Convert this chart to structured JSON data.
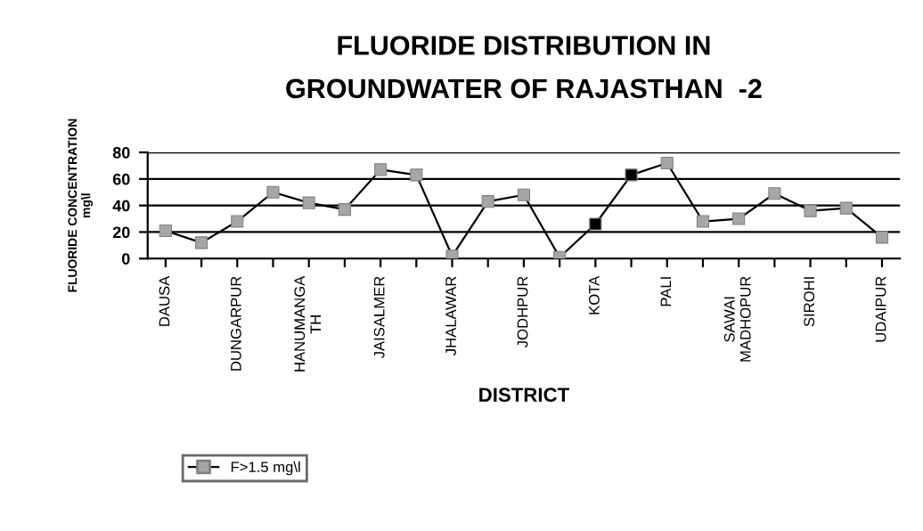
{
  "chart_data": {
    "type": "line",
    "title": "FLUORIDE DISTRIBUTION IN\nGROUNDWATER OF RAJASTHAN  -2",
    "xlabel": "DISTRICT",
    "ylabel": "FLUORIDE CONCENTRATION\nmg\\l",
    "categories": [
      "DAUSA",
      null,
      "DUNGARPUR",
      null,
      "HANUMANGA\nTH",
      null,
      "JAISALMER",
      null,
      "JHALAWAR",
      null,
      "JODHPUR",
      null,
      "KOTA",
      null,
      "PALI",
      null,
      "SAWAI\nMADHOPUR",
      null,
      "SIROHI",
      null,
      "UDAIPUR"
    ],
    "series": [
      {
        "name": "F>1.5 mg\\l",
        "color": "#000000",
        "colors": [
          "#a6a6a6",
          "#a6a6a6",
          "#a6a6a6",
          "#a6a6a6",
          "#a6a6a6",
          "#a6a6a6",
          "#a6a6a6",
          "#a6a6a6",
          "#a6a6a6",
          "#a6a6a6",
          "#a6a6a6",
          "#a6a6a6",
          "#000000",
          "#000000",
          "#a6a6a6",
          "#a6a6a6",
          "#a6a6a6",
          "#a6a6a6",
          "#a6a6a6",
          "#a6a6a6",
          "#a6a6a6"
        ],
        "values": [
          21,
          12,
          28,
          50,
          42,
          37,
          67,
          63,
          2,
          43,
          48,
          1,
          26,
          63,
          72,
          28,
          30,
          49,
          36,
          38,
          16
        ]
      }
    ],
    "ylim": [
      0,
      80
    ],
    "yticks": [
      0,
      20,
      40,
      60,
      80
    ],
    "grid": "y",
    "legend": "bottom left",
    "marker": "square",
    "line_style": "solid"
  }
}
